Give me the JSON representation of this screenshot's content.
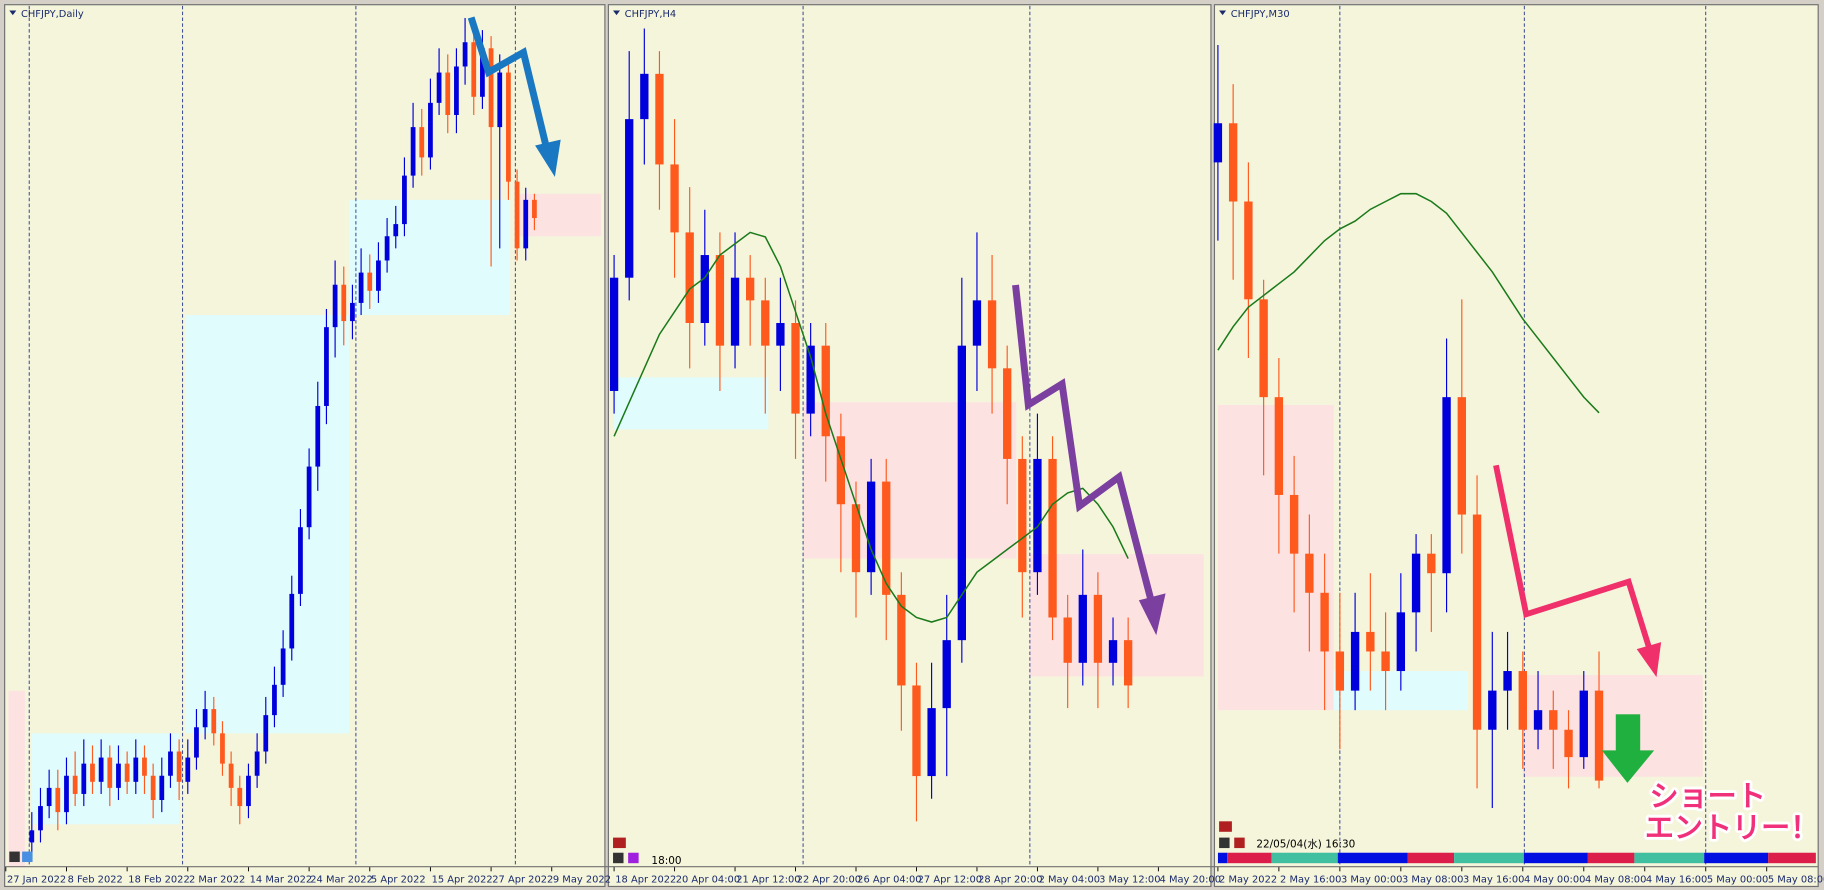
{
  "chart_data": [
    {
      "type": "candlestick",
      "title": "CHFJPY,Daily",
      "xlim": [
        -3,
        66
      ],
      "ylim": [
        124.4,
        138.6
      ],
      "up_color": "#0000dc",
      "down_color": "#ff5a1e",
      "xticks": [
        {
          "value": -3,
          "label": "27 Jan 2022"
        },
        {
          "value": 4,
          "label": "8 Feb 2022"
        },
        {
          "value": 11,
          "label": "18 Feb 2022"
        },
        {
          "value": 18,
          "label": "2 Mar 2022"
        },
        {
          "value": 25,
          "label": "14 Mar 2022"
        },
        {
          "value": 32,
          "label": "24 Mar 2022"
        },
        {
          "value": 39,
          "label": "5 Apr 2022"
        },
        {
          "value": 46,
          "label": "15 Apr 2022"
        },
        {
          "value": 53,
          "label": "27 Apr 2022"
        },
        {
          "value": 60,
          "label": "9 May 2022"
        }
      ],
      "vlines": [
        -0.3,
        17.4,
        37.4,
        55.8
      ],
      "zones": [
        {
          "x": [
            0,
            17
          ],
          "y": [
            125.1,
            126.6
          ],
          "color": "#e0fcfc"
        },
        {
          "x": [
            17.7,
            36.6
          ],
          "y": [
            126.6,
            133.5
          ],
          "color": "#e0fcfc"
        },
        {
          "x": [
            36.6,
            55.2
          ],
          "y": [
            133.5,
            135.4
          ],
          "color": "#e0fcfc"
        },
        {
          "x": [
            56.3,
            65.7
          ],
          "y": [
            134.8,
            135.5
          ],
          "color": "#fde2e2"
        },
        {
          "x": [
            -2.7,
            -0.8
          ],
          "y": [
            124.4,
            127.3
          ],
          "color": "#fde2e2"
        }
      ],
      "candles": [
        [
          124.8,
          125.3,
          124.5,
          125.0
        ],
        [
          125.0,
          125.7,
          124.8,
          125.4
        ],
        [
          125.4,
          126.0,
          125.2,
          125.7
        ],
        [
          125.7,
          126.0,
          125.0,
          125.3
        ],
        [
          125.3,
          126.2,
          125.1,
          125.9
        ],
        [
          125.9,
          126.3,
          125.4,
          125.6
        ],
        [
          125.6,
          126.5,
          125.4,
          126.1
        ],
        [
          126.1,
          126.4,
          125.6,
          125.8
        ],
        [
          125.8,
          126.5,
          125.6,
          126.2
        ],
        [
          126.2,
          126.4,
          125.4,
          125.7
        ],
        [
          125.7,
          126.4,
          125.5,
          126.1
        ],
        [
          126.1,
          126.3,
          125.6,
          125.8
        ],
        [
          125.8,
          126.5,
          125.6,
          126.2
        ],
        [
          126.2,
          126.4,
          125.6,
          125.9
        ],
        [
          125.9,
          126.1,
          125.2,
          125.5
        ],
        [
          125.5,
          126.2,
          125.3,
          125.9
        ],
        [
          125.9,
          126.6,
          125.7,
          126.3
        ],
        [
          126.3,
          126.5,
          125.5,
          125.8
        ],
        [
          125.8,
          126.5,
          125.6,
          126.2
        ],
        [
          126.2,
          127.0,
          126.0,
          126.7
        ],
        [
          126.7,
          127.3,
          126.5,
          127.0
        ],
        [
          127.0,
          127.2,
          126.4,
          126.6
        ],
        [
          126.6,
          126.8,
          125.9,
          126.1
        ],
        [
          126.1,
          126.3,
          125.4,
          125.7
        ],
        [
          125.7,
          125.9,
          125.1,
          125.4
        ],
        [
          125.4,
          126.1,
          125.2,
          125.9
        ],
        [
          125.9,
          126.6,
          125.7,
          126.3
        ],
        [
          126.3,
          127.2,
          126.1,
          126.9
        ],
        [
          126.9,
          127.7,
          126.7,
          127.4
        ],
        [
          127.4,
          128.3,
          127.2,
          128.0
        ],
        [
          128.0,
          129.2,
          127.8,
          128.9
        ],
        [
          128.9,
          130.3,
          128.7,
          130.0
        ],
        [
          130.0,
          131.3,
          129.8,
          131.0
        ],
        [
          131.0,
          132.4,
          130.6,
          132.0
        ],
        [
          132.0,
          133.6,
          131.7,
          133.3
        ],
        [
          133.3,
          134.4,
          132.8,
          134.0
        ],
        [
          134.0,
          134.3,
          133.0,
          133.4
        ],
        [
          133.4,
          134.0,
          133.1,
          133.7
        ],
        [
          133.7,
          134.6,
          133.5,
          134.2
        ],
        [
          134.2,
          134.5,
          133.6,
          133.9
        ],
        [
          133.9,
          134.7,
          133.7,
          134.4
        ],
        [
          134.4,
          135.1,
          134.2,
          134.8
        ],
        [
          134.8,
          135.3,
          134.6,
          135.0
        ],
        [
          135.0,
          136.1,
          134.8,
          135.8
        ],
        [
          135.8,
          137.0,
          135.6,
          136.6
        ],
        [
          136.6,
          136.9,
          135.8,
          136.1
        ],
        [
          136.1,
          137.4,
          135.9,
          137.0
        ],
        [
          137.0,
          137.9,
          136.8,
          137.5
        ],
        [
          137.5,
          137.8,
          136.5,
          136.8
        ],
        [
          136.8,
          137.9,
          136.5,
          137.6
        ],
        [
          137.6,
          138.4,
          137.3,
          138.0
        ],
        [
          138.0,
          138.2,
          136.8,
          137.1
        ],
        [
          137.1,
          138.2,
          136.9,
          137.9
        ],
        [
          137.9,
          138.1,
          134.3,
          136.6
        ],
        [
          136.6,
          137.8,
          134.6,
          137.5
        ],
        [
          137.5,
          137.7,
          135.4,
          135.7
        ],
        [
          135.7,
          135.9,
          134.4,
          134.6
        ],
        [
          134.6,
          135.6,
          134.4,
          135.4
        ],
        [
          135.4,
          135.5,
          134.9,
          135.1
        ]
      ]
    },
    {
      "type": "candlestick",
      "title": "CHFJPY,H4",
      "xlim": [
        -0.3,
        39.4
      ],
      "ylim": [
        131.6,
        135.4
      ],
      "up_color": "#0000dc",
      "down_color": "#ff5a1e",
      "ma_color": "#1a7a1a",
      "xticks": [
        {
          "value": 0,
          "label": "18 Apr 2022"
        },
        {
          "value": 4,
          "label": "20 Apr 04:00"
        },
        {
          "value": 8,
          "label": "21 Apr 12:00"
        },
        {
          "value": 12,
          "label": "22 Apr 20:00"
        },
        {
          "value": 16,
          "label": "26 Apr 04:00"
        },
        {
          "value": 20,
          "label": "27 Apr 12:00"
        },
        {
          "value": 24,
          "label": "28 Apr 20:00"
        },
        {
          "value": 28,
          "label": "2 May 04:00"
        },
        {
          "value": 32,
          "label": "3 May 12:00"
        },
        {
          "value": 36,
          "label": "4 May 20:00"
        }
      ],
      "vlines": [
        12.5,
        27.5
      ],
      "zones": [
        {
          "x": [
            0,
            10.2
          ],
          "y": [
            133.53,
            133.76
          ],
          "color": "#e0fcfc"
        },
        {
          "x": [
            12.5,
            26.6
          ],
          "y": [
            132.96,
            133.65
          ],
          "color": "#fde2e2"
        },
        {
          "x": [
            27.5,
            39
          ],
          "y": [
            132.44,
            132.98
          ],
          "color": "#fde2e2"
        }
      ],
      "candles": [
        [
          133.7,
          134.3,
          133.6,
          134.2
        ],
        [
          134.2,
          135.2,
          134.1,
          134.9
        ],
        [
          134.9,
          135.3,
          134.7,
          135.1
        ],
        [
          135.1,
          135.2,
          134.5,
          134.7
        ],
        [
          134.7,
          134.9,
          134.2,
          134.4
        ],
        [
          134.4,
          134.6,
          133.8,
          134.0
        ],
        [
          134.0,
          134.5,
          133.9,
          134.3
        ],
        [
          134.3,
          134.4,
          133.7,
          133.9
        ],
        [
          133.9,
          134.4,
          133.8,
          134.2
        ],
        [
          134.2,
          134.3,
          133.9,
          134.1
        ],
        [
          134.1,
          134.2,
          133.6,
          133.9
        ],
        [
          133.9,
          134.2,
          133.7,
          134.0
        ],
        [
          134.0,
          134.1,
          133.4,
          133.6
        ],
        [
          133.6,
          134.0,
          133.5,
          133.9
        ],
        [
          133.9,
          134.0,
          133.3,
          133.5
        ],
        [
          133.5,
          133.6,
          132.9,
          133.2
        ],
        [
          133.2,
          133.3,
          132.7,
          132.9
        ],
        [
          132.9,
          133.4,
          132.8,
          133.3
        ],
        [
          133.3,
          133.4,
          132.6,
          132.8
        ],
        [
          132.8,
          132.9,
          132.2,
          132.4
        ],
        [
          132.4,
          132.5,
          131.8,
          132.0
        ],
        [
          132.0,
          132.5,
          131.9,
          132.3
        ],
        [
          132.3,
          132.8,
          132.0,
          132.6
        ],
        [
          132.6,
          134.2,
          132.5,
          133.9
        ],
        [
          133.9,
          134.4,
          133.7,
          134.1
        ],
        [
          134.1,
          134.3,
          133.6,
          133.8
        ],
        [
          133.8,
          133.9,
          133.2,
          133.4
        ],
        [
          133.4,
          133.5,
          132.7,
          132.9
        ],
        [
          132.9,
          133.6,
          132.8,
          133.4
        ],
        [
          133.4,
          133.5,
          132.6,
          132.7
        ],
        [
          132.7,
          132.8,
          132.3,
          132.5
        ],
        [
          132.5,
          133.0,
          132.4,
          132.8
        ],
        [
          132.8,
          132.9,
          132.3,
          132.5
        ],
        [
          132.5,
          132.7,
          132.4,
          132.6
        ],
        [
          132.6,
          132.7,
          132.3,
          132.4
        ]
      ],
      "ma": [
        133.5,
        133.65,
        133.8,
        133.95,
        134.05,
        134.15,
        134.2,
        134.3,
        134.35,
        134.4,
        134.38,
        134.25,
        134.05,
        133.85,
        133.6,
        133.4,
        133.2,
        133.0,
        132.85,
        132.75,
        132.7,
        132.68,
        132.7,
        132.8,
        132.9,
        132.95,
        133.0,
        133.05,
        133.1,
        133.2,
        133.25,
        133.27,
        133.2,
        133.1,
        132.96
      ]
    },
    {
      "type": "candlestick",
      "title": "CHFJPY,M30",
      "xlim": [
        -0.15,
        39.3
      ],
      "ylim": [
        132.3,
        134.5
      ],
      "up_color": "#0000dc",
      "down_color": "#ff5a1e",
      "ma_color": "#1a7a1a",
      "xticks": [
        {
          "value": 0,
          "label": "2 May 2022"
        },
        {
          "value": 4,
          "label": "2 May 16:00"
        },
        {
          "value": 8,
          "label": "3 May 00:00"
        },
        {
          "value": 12,
          "label": "3 May 08:00"
        },
        {
          "value": 16,
          "label": "3 May 16:00"
        },
        {
          "value": 20,
          "label": "4 May 00:00"
        },
        {
          "value": 24,
          "label": "4 May 08:00"
        },
        {
          "value": 28,
          "label": "4 May 16:00"
        },
        {
          "value": 32,
          "label": "5 May 00:00"
        },
        {
          "value": 36,
          "label": "5 May 08:00"
        }
      ],
      "vlines": [
        8,
        20.1,
        32
      ],
      "zones": [
        {
          "x": [
            0,
            7.6
          ],
          "y": [
            132.7,
            133.48
          ],
          "color": "#fde2e2"
        },
        {
          "x": [
            7.6,
            16.4
          ],
          "y": [
            132.7,
            132.8
          ],
          "color": "#e0fcfc"
        },
        {
          "x": [
            20,
            31.8
          ],
          "y": [
            132.53,
            132.79
          ],
          "color": "#fde2e2"
        }
      ],
      "candles": [
        [
          134.1,
          134.4,
          133.9,
          134.2
        ],
        [
          134.2,
          134.3,
          133.8,
          134.0
        ],
        [
          134.0,
          134.1,
          133.6,
          133.75
        ],
        [
          133.75,
          133.8,
          133.3,
          133.5
        ],
        [
          133.5,
          133.6,
          133.1,
          133.25
        ],
        [
          133.25,
          133.35,
          132.95,
          133.1
        ],
        [
          133.1,
          133.2,
          132.85,
          133.0
        ],
        [
          133.0,
          133.1,
          132.7,
          132.85
        ],
        [
          132.85,
          133.0,
          132.6,
          132.75
        ],
        [
          132.75,
          133.0,
          132.7,
          132.9
        ],
        [
          132.9,
          133.05,
          132.75,
          132.85
        ],
        [
          132.85,
          132.95,
          132.7,
          132.8
        ],
        [
          132.8,
          133.05,
          132.75,
          132.95
        ],
        [
          132.95,
          133.15,
          132.85,
          133.1
        ],
        [
          133.1,
          133.15,
          132.9,
          133.05
        ],
        [
          133.05,
          133.65,
          132.95,
          133.5
        ],
        [
          133.5,
          133.75,
          133.1,
          133.2
        ],
        [
          133.2,
          133.3,
          132.5,
          132.65
        ],
        [
          132.65,
          132.9,
          132.45,
          132.75
        ],
        [
          132.75,
          132.9,
          132.65,
          132.8
        ],
        [
          132.8,
          132.85,
          132.55,
          132.65
        ],
        [
          132.65,
          132.8,
          132.6,
          132.7
        ],
        [
          132.7,
          132.75,
          132.55,
          132.65
        ],
        [
          132.65,
          132.7,
          132.5,
          132.58
        ],
        [
          132.58,
          132.8,
          132.55,
          132.75
        ],
        [
          132.75,
          132.85,
          132.5,
          132.52
        ]
      ],
      "ma": [
        133.62,
        133.68,
        133.73,
        133.76,
        133.79,
        133.82,
        133.86,
        133.9,
        133.93,
        133.95,
        133.98,
        134.0,
        134.02,
        134.02,
        134.0,
        133.97,
        133.92,
        133.87,
        133.82,
        133.76,
        133.7,
        133.65,
        133.6,
        133.55,
        133.5,
        133.46
      ]
    }
  ],
  "annotations": {
    "time_h4": "18:00",
    "time_m30": "22/05/04(水) 16:30",
    "entry": [
      "ショート",
      "エントリー！"
    ]
  }
}
